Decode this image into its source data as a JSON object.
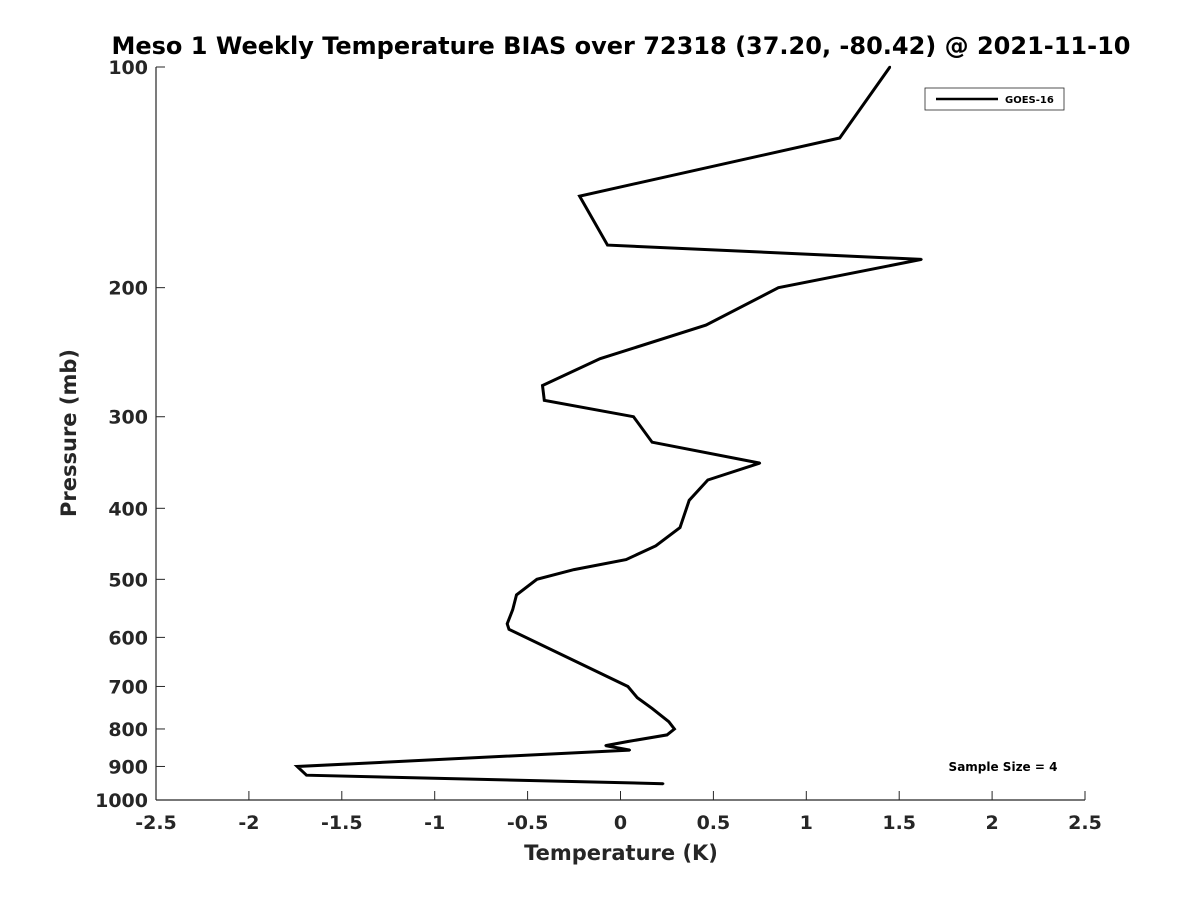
{
  "chart_data": {
    "type": "line",
    "title": "Meso 1 Weekly Temperature BIAS over 72318 (37.20, -80.42) @ 2021-11-10",
    "xlabel": "Temperature (K)",
    "ylabel": "Pressure (mb)",
    "xlim": [
      -2.5,
      2.5
    ],
    "ylim": [
      100,
      1000
    ],
    "yscale": "log",
    "y_reversed": true,
    "grid": false,
    "legend_position": "top-right",
    "x_ticks": [
      -2.5,
      -2,
      -1.5,
      -1,
      -0.5,
      0,
      0.5,
      1,
      1.5,
      2,
      2.5
    ],
    "x_tick_labels": [
      "-2.5",
      "-2",
      "-1.5",
      "-1",
      "-0.5",
      "0",
      "0.5",
      "1",
      "1.5",
      "2",
      "2.5"
    ],
    "y_ticks": [
      100,
      200,
      300,
      400,
      500,
      600,
      700,
      800,
      900,
      1000
    ],
    "y_tick_labels": [
      "100",
      "200",
      "300",
      "400",
      "500",
      "600",
      "700",
      "800",
      "900",
      "1000"
    ],
    "annotation": "Sample Size = 4",
    "series": [
      {
        "name": "GOES-16",
        "color": "#000000",
        "points": [
          {
            "x": 1.45,
            "y": 100
          },
          {
            "x": 1.18,
            "y": 125
          },
          {
            "x": -0.22,
            "y": 150
          },
          {
            "x": -0.07,
            "y": 175
          },
          {
            "x": 1.62,
            "y": 183
          },
          {
            "x": 0.85,
            "y": 200
          },
          {
            "x": 0.46,
            "y": 225
          },
          {
            "x": -0.11,
            "y": 250
          },
          {
            "x": -0.42,
            "y": 272
          },
          {
            "x": -0.41,
            "y": 285
          },
          {
            "x": 0.07,
            "y": 300
          },
          {
            "x": 0.17,
            "y": 325
          },
          {
            "x": 0.75,
            "y": 347
          },
          {
            "x": 0.47,
            "y": 366
          },
          {
            "x": 0.37,
            "y": 390
          },
          {
            "x": 0.32,
            "y": 425
          },
          {
            "x": 0.19,
            "y": 450
          },
          {
            "x": 0.03,
            "y": 470
          },
          {
            "x": -0.25,
            "y": 485
          },
          {
            "x": -0.45,
            "y": 500
          },
          {
            "x": -0.56,
            "y": 525
          },
          {
            "x": -0.58,
            "y": 550
          },
          {
            "x": -0.61,
            "y": 575
          },
          {
            "x": -0.6,
            "y": 585
          },
          {
            "x": 0.04,
            "y": 700
          },
          {
            "x": 0.09,
            "y": 725
          },
          {
            "x": 0.17,
            "y": 750
          },
          {
            "x": 0.26,
            "y": 782
          },
          {
            "x": 0.29,
            "y": 800
          },
          {
            "x": 0.25,
            "y": 815
          },
          {
            "x": 0.04,
            "y": 832
          },
          {
            "x": -0.08,
            "y": 843
          },
          {
            "x": 0.05,
            "y": 855
          },
          {
            "x": -1.74,
            "y": 900
          },
          {
            "x": -1.69,
            "y": 925
          },
          {
            "x": 0.23,
            "y": 950
          }
        ]
      }
    ]
  }
}
